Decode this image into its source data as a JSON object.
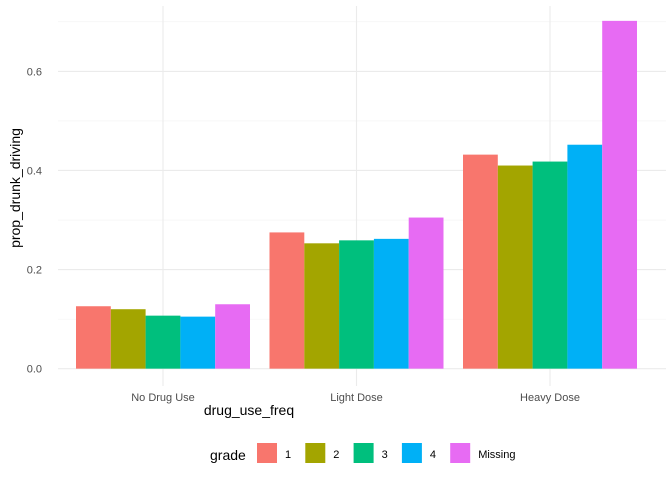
{
  "chart_data": {
    "type": "bar",
    "title": "",
    "xlabel": "drug_use_freq",
    "ylabel": "prop_drunk_driving",
    "categories": [
      "No Drug Use",
      "Light Dose",
      "Heavy Dose"
    ],
    "ylim": [
      -0.035,
      0.732
    ],
    "yticks": [
      0.0,
      0.2,
      0.4,
      0.6
    ],
    "ytick_labels": [
      "0.0",
      "0.2",
      "0.4",
      "0.6"
    ],
    "legend_title": "grade",
    "legend_position": "bottom",
    "grid": true,
    "series": [
      {
        "name": "1",
        "color": "#F8766D",
        "values": [
          0.126,
          0.275,
          0.432
        ]
      },
      {
        "name": "2",
        "color": "#A3A500",
        "values": [
          0.12,
          0.253,
          0.41
        ]
      },
      {
        "name": "3",
        "color": "#00BF7D",
        "values": [
          0.107,
          0.259,
          0.418
        ]
      },
      {
        "name": "4",
        "color": "#00B0F6",
        "values": [
          0.105,
          0.262,
          0.452
        ]
      },
      {
        "name": "Missing",
        "color": "#E76BF3",
        "values": [
          0.13,
          0.305,
          0.702
        ]
      }
    ]
  }
}
